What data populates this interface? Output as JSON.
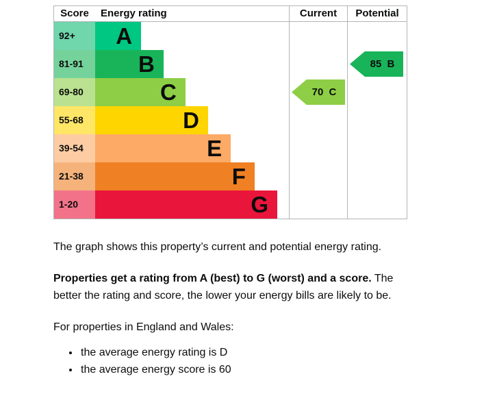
{
  "header": {
    "score": "Score",
    "rating": "Energy rating",
    "current": "Current",
    "potential": "Potential"
  },
  "chart_data": {
    "type": "bar",
    "title": "Energy rating chart",
    "columns": [
      "Score",
      "Energy rating",
      "Current",
      "Potential"
    ],
    "bands": [
      {
        "letter": "A",
        "score_range": "92+",
        "color": "#00c781",
        "tint": "#70d6ac",
        "bar_pct": 23.7
      },
      {
        "letter": "B",
        "score_range": "81-91",
        "color": "#19b459",
        "tint": "#75d29b",
        "bar_pct": 35.3
      },
      {
        "letter": "C",
        "score_range": "69-80",
        "color": "#8dce46",
        "tint": "#bae190",
        "bar_pct": 46.6
      },
      {
        "letter": "D",
        "score_range": "55-68",
        "color": "#ffd500",
        "tint": "#ffe666",
        "bar_pct": 58.3
      },
      {
        "letter": "E",
        "score_range": "39-54",
        "color": "#fcaa65",
        "tint": "#fdcca3",
        "bar_pct": 70.0
      },
      {
        "letter": "F",
        "score_range": "21-38",
        "color": "#ef8023",
        "tint": "#f5b37b",
        "bar_pct": 82.3
      },
      {
        "letter": "G",
        "score_range": "1-20",
        "color": "#e9153b",
        "tint": "#f27389",
        "bar_pct": 94.0
      }
    ],
    "current": {
      "score": 70,
      "band": "C",
      "label": "70 C",
      "color": "#8dce46"
    },
    "potential": {
      "score": 85,
      "band": "B",
      "label": "85 B",
      "color": "#19b459"
    }
  },
  "text": {
    "p1": "The graph shows this property’s current and potential energy rating.",
    "p2_bold": "Properties get a rating from A (best) to G (worst) and a score.",
    "p2_rest": " The better the rating and score, the lower your energy bills are likely to be.",
    "p3": "For properties in England and Wales:",
    "bullets": [
      "the average energy rating is D",
      "the average energy score is 60"
    ]
  }
}
